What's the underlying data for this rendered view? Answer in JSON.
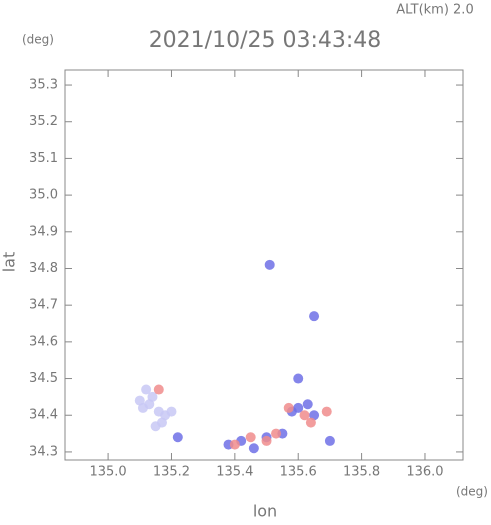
{
  "chart_data": {
    "type": "scatter",
    "title": "2021/10/25 03:43:48",
    "subtitle": "ALT(km) 2.0",
    "x_unit": "(deg)",
    "y_unit": "(deg)",
    "x_label": "lon",
    "y_label": "lat",
    "xlim": [
      134.864,
      136.12
    ],
    "ylim": [
      34.278,
      35.341
    ],
    "xticks": [
      {
        "value": 135.0,
        "label": "135.0"
      },
      {
        "value": 135.2,
        "label": "135.2"
      },
      {
        "value": 135.4,
        "label": "135.4"
      },
      {
        "value": 135.6,
        "label": "135.6"
      },
      {
        "value": 135.8,
        "label": "135.8"
      },
      {
        "value": 136.0,
        "label": "136.0"
      }
    ],
    "yticks": [
      {
        "value": 34.3,
        "label": "34.3"
      },
      34.4,
      34.5,
      34.6,
      34.7,
      34.8,
      34.9,
      {
        "value": 35.0,
        "label": "35.0"
      },
      35.1,
      35.2,
      35.3
    ],
    "series": [
      {
        "color": "#c8c8f4",
        "x": [
          135.1,
          135.12,
          135.14,
          135.11,
          135.16,
          135.18,
          135.2,
          135.17,
          135.15,
          135.13
        ],
        "values": [
          34.44,
          34.47,
          34.45,
          34.42,
          34.41,
          34.4,
          34.41,
          34.38,
          34.37,
          34.43
        ]
      },
      {
        "color": "#6e70e6",
        "x": [
          135.22,
          135.38,
          135.42,
          135.46,
          135.5,
          135.55,
          135.58,
          135.6,
          135.63,
          135.65,
          135.7,
          135.51,
          135.65,
          135.6
        ],
        "values": [
          34.34,
          34.32,
          34.33,
          34.31,
          34.34,
          34.35,
          34.41,
          34.42,
          34.43,
          34.4,
          34.33,
          34.81,
          34.67,
          34.5
        ]
      },
      {
        "color": "#f08c8c",
        "x": [
          135.16,
          135.4,
          135.45,
          135.5,
          135.53,
          135.57,
          135.62,
          135.64,
          135.69
        ],
        "values": [
          34.47,
          34.32,
          34.34,
          34.33,
          34.35,
          34.42,
          34.4,
          34.38,
          34.41
        ]
      }
    ]
  }
}
